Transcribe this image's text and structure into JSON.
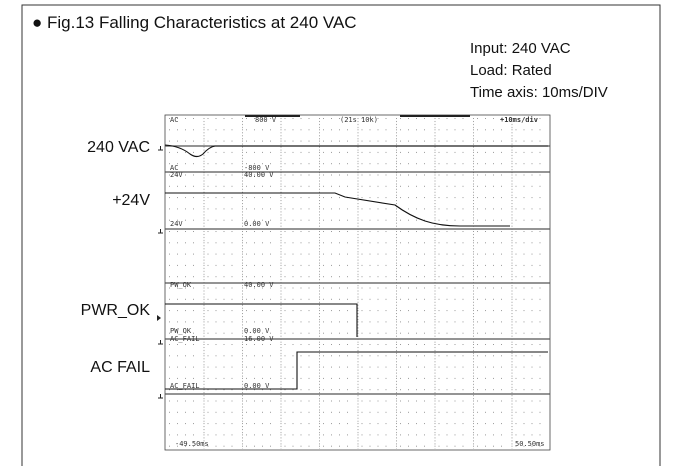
{
  "header": {
    "title": "● Fig.13  Falling Characteristics at 240 VAC"
  },
  "conditions": [
    "Input: 240 VAC",
    "Load: Rated",
    "Time axis: 10ms/DIV"
  ],
  "channels": [
    "240 VAC",
    "+24V",
    "PWR_OK",
    "AC FAIL"
  ],
  "scope": {
    "top": [
      "AC",
      "800 V",
      "(21s 10k)",
      "+10ms/div"
    ],
    "labels": [
      [
        "AC",
        "-800 V"
      ],
      [
        "24V",
        "40.00 V"
      ],
      [
        "24V",
        "0.00 V"
      ],
      [
        "PW_OK",
        "40.00 V"
      ],
      [
        "PW_OK",
        "0.00 V"
      ],
      [
        "AC_FAIL",
        "16.00 V"
      ],
      [
        "AC_FAIL",
        "0.00 V"
      ]
    ],
    "time_start": "-49.50ms",
    "time_end": "50.50ms"
  }
}
